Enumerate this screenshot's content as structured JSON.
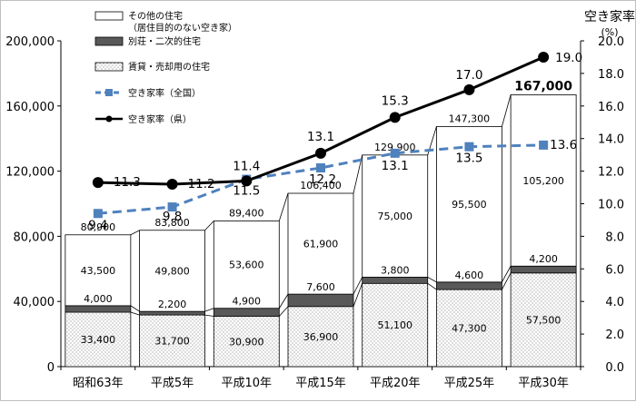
{
  "chart_data": {
    "type": "bar",
    "subtype": "stacked-bar-with-lines",
    "categories": [
      "昭和63年",
      "平成5年",
      "平成10年",
      "平成15年",
      "平成20年",
      "平成25年",
      "平成30年"
    ],
    "series": [
      {
        "name": "賃貸・売却用の住宅",
        "values": [
          33400,
          31700,
          30900,
          36900,
          51100,
          47300,
          57500
        ],
        "pattern": "dots"
      },
      {
        "name": "別荘・二次的住宅",
        "values": [
          4000,
          2200,
          4900,
          7600,
          3800,
          4600,
          4200
        ],
        "color": "#595959"
      },
      {
        "name": "その他の住宅",
        "name_line2": "（居住目的のない空き家）",
        "values": [
          43500,
          49800,
          53600,
          61900,
          75000,
          95500,
          105200
        ],
        "color": "#ffffff"
      }
    ],
    "totals": [
      80900,
      83800,
      89400,
      106400,
      129900,
      147300,
      167000
    ],
    "total_labels": [
      "80,900",
      "83,800",
      "89,400",
      "106,400",
      "129,900",
      "147,300",
      "167,000"
    ],
    "segment_labels": [
      [
        "33,400",
        "4,000",
        "43,500"
      ],
      [
        "31,700",
        "2,200",
        "49,800"
      ],
      [
        "30,900",
        "4,900",
        "53,600"
      ],
      [
        "36,900",
        "7,600",
        "61,900"
      ],
      [
        "51,100",
        "3,800",
        "75,000"
      ],
      [
        "47,300",
        "4,600",
        "95,500"
      ],
      [
        "57,500",
        "4,200",
        "105,200"
      ]
    ],
    "lines": [
      {
        "name": "空き家率（全国）",
        "values": [
          9.4,
          9.8,
          11.5,
          12.2,
          13.1,
          13.5,
          13.6
        ],
        "labels": [
          "9.4",
          "9.8",
          "11.5",
          "12.2",
          "13.1",
          "13.5",
          "13.6"
        ],
        "color": "#4f81bd",
        "style": "dashed",
        "marker": "square"
      },
      {
        "name": "空き家率（県）",
        "values": [
          11.3,
          11.2,
          11.4,
          13.1,
          15.3,
          17.0,
          19.0
        ],
        "labels": [
          "11.3",
          "11.2",
          "11.4",
          "13.1",
          "15.3",
          "17.0",
          "19.0"
        ],
        "color": "#000000",
        "style": "solid",
        "marker": "circle"
      }
    ],
    "y_left": {
      "min": 0,
      "max": 200000,
      "ticks": [
        "0",
        "40,000",
        "80,000",
        "120,000",
        "160,000",
        "200,000"
      ]
    },
    "y_right": {
      "min": 0,
      "max": 20,
      "title": "空き家率",
      "unit": "(%)",
      "ticks": [
        "0.0",
        "2.0",
        "4.0",
        "6.0",
        "8.0",
        "10.0",
        "12.0",
        "14.0",
        "16.0",
        "18.0",
        "20.0"
      ]
    },
    "legend_position": "top-left"
  }
}
